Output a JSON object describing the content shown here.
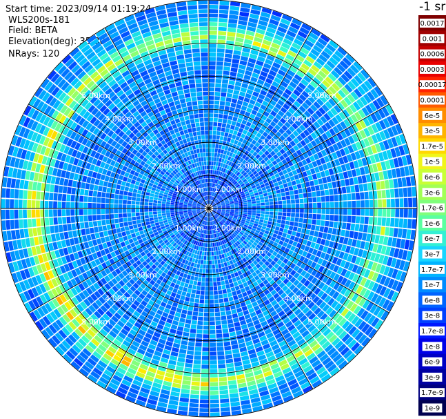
{
  "header": {
    "start_time": "Start time: 2023/09/14 01:19:24",
    "instrument": "WLS200s-181",
    "field": "Field: BETA",
    "elevation": "Elevation(deg): 35.30",
    "nrays": "NRays: 120"
  },
  "colorbar": {
    "unit_label": "-1 sr",
    "levels": [
      "0.0017",
      "0.001",
      "0.0006",
      "0.0003",
      "0.00017",
      "0.0001",
      "6e-5",
      "3e-5",
      "1.7e-5",
      "1e-5",
      "6e-6",
      "3e-6",
      "1.7e-6",
      "1e-6",
      "6e-7",
      "3e-7",
      "1.7e-7",
      "1e-7",
      "6e-8",
      "3e-8",
      "1.7e-8",
      "1e-8",
      "6e-9",
      "3e-9",
      "1.7e-9",
      "1e-9"
    ],
    "colors": [
      "#7f0000",
      "#a00000",
      "#c40000",
      "#e80000",
      "#ff2200",
      "#ff5a00",
      "#ff8c00",
      "#ffb400",
      "#ffd800",
      "#f0f51a",
      "#c8ff36",
      "#a2ff55",
      "#7fff7b",
      "#5bffa0",
      "#34f0d4",
      "#19d6ff",
      "#00b4ff",
      "#008cff",
      "#0064ff",
      "#0040ff",
      "#0018ff",
      "#0000e8",
      "#0000c4",
      "#0000a0",
      "#00007f",
      "#000050"
    ]
  },
  "chart_data": {
    "type": "heatmap",
    "projection": "polar (plan position indicator)",
    "field": "BETA",
    "nrays": 120,
    "range_ring_labels": [
      "1.00km",
      "2.00km",
      "3.00km",
      "4.00km",
      "5.00km"
    ],
    "range_ring_km": [
      1,
      2,
      3,
      4,
      5
    ],
    "max_range_km": 6.3,
    "description_of_values": "background level ~3e-7 to 1e-6 in the interior, an enhanced ring near 5-5.5 km reaching ~1e-5 to 6e-5 (strongest in the west and south)"
  }
}
